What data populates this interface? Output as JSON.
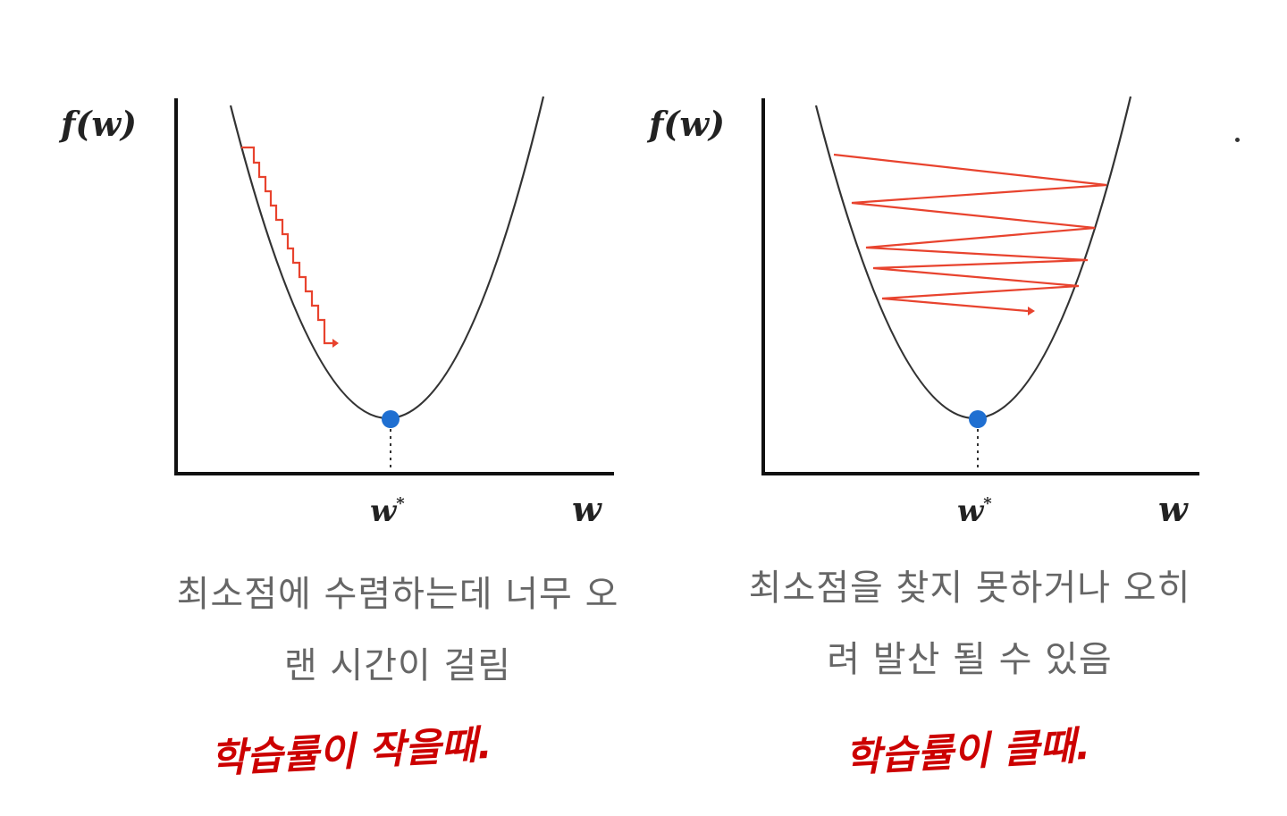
{
  "colors": {
    "curve": "#333333",
    "axis": "#111111",
    "path": "#e8432e",
    "minimum": "#1f6fd1",
    "caption": "#666666",
    "handwriting": "#cc0000"
  },
  "panels": [
    {
      "id": "small-learning-rate",
      "ylabel": "f(w)",
      "xlabel": "w",
      "min_label": "w*",
      "caption_line1": "최소점에 수렴하는데 너무 오",
      "caption_line2": "랜 시간이 걸림",
      "handwritten_note": "학습률이 작을때."
    },
    {
      "id": "large-learning-rate",
      "ylabel": "f(w)",
      "xlabel": "w",
      "min_label": "w*",
      "caption_line1": "최소점을 찾지 못하거나 오히",
      "caption_line2": "려 발산 될 수 있음",
      "handwritten_note": "학습률이 클때."
    }
  ]
}
